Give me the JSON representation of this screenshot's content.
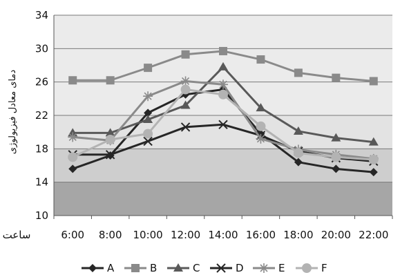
{
  "chart_data": {
    "type": "line",
    "x": [
      "6:00",
      "8:00",
      "10:00",
      "12:00",
      "14:00",
      "16:00",
      "18:00",
      "20:00",
      "22:00"
    ],
    "xlabel": "ساعت",
    "ylabel": "دمای معادل فیزیولوژی",
    "ylim": [
      10,
      34
    ],
    "yticks": [
      10,
      14,
      18,
      22,
      26,
      30,
      34
    ],
    "grid": true,
    "legend": "bottom",
    "bands": [
      {
        "from": 10,
        "to": 14,
        "color": "#a6a6a6"
      },
      {
        "from": 14,
        "to": 18,
        "color": "#cecece"
      },
      {
        "from": 18,
        "to": 22,
        "color": "#e3e3e3"
      },
      {
        "from": 22,
        "to": 26,
        "color": "#ebebeb"
      },
      {
        "from": 26,
        "to": 30,
        "color": "#ebebeb"
      },
      {
        "from": 30,
        "to": 34,
        "color": "#ebebeb"
      }
    ],
    "series": [
      {
        "name": "A",
        "marker": "diamond",
        "color": "#262626",
        "values": [
          15.6,
          17.2,
          22.3,
          24.5,
          25.1,
          19.8,
          16.4,
          15.6,
          15.2
        ]
      },
      {
        "name": "B",
        "marker": "square",
        "color": "#8a8a8a",
        "values": [
          26.2,
          26.2,
          27.7,
          29.3,
          29.7,
          28.7,
          27.1,
          26.5,
          26.1
        ]
      },
      {
        "name": "C",
        "marker": "triangle",
        "color": "#595959",
        "values": [
          19.9,
          19.9,
          21.5,
          23.2,
          27.8,
          22.9,
          20.1,
          19.3,
          18.8
        ]
      },
      {
        "name": "D",
        "marker": "x",
        "color": "#262626",
        "values": [
          17.3,
          17.3,
          18.9,
          20.6,
          20.9,
          19.6,
          17.7,
          16.9,
          16.5
        ]
      },
      {
        "name": "E",
        "marker": "star",
        "color": "#8a8a8a",
        "values": [
          19.4,
          19.0,
          24.3,
          26.1,
          25.7,
          19.2,
          17.9,
          17.3,
          16.8
        ]
      },
      {
        "name": "F",
        "marker": "circle",
        "color": "#b3b3b3",
        "values": [
          17.0,
          19.1,
          19.8,
          25.1,
          24.5,
          20.7,
          17.5,
          17.0,
          16.7
        ]
      }
    ]
  }
}
